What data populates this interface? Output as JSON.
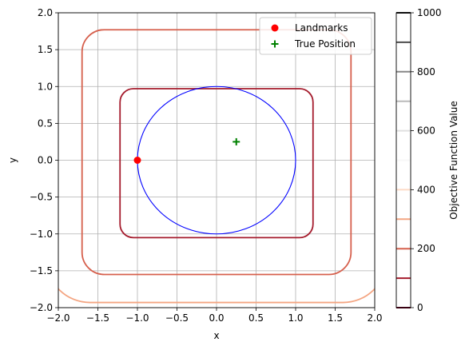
{
  "chart_data": {
    "type": "contour",
    "xlabel": "x",
    "ylabel": "y",
    "xlim": [
      -2,
      2
    ],
    "ylim": [
      -2,
      2
    ],
    "xticks": [
      "−2.0",
      "−1.5",
      "−1.0",
      "−0.5",
      "0.0",
      "0.5",
      "1.0",
      "1.5",
      "2.0"
    ],
    "yticks": [
      "−2.0",
      "−1.5",
      "−1.0",
      "−0.5",
      "0.0",
      "0.5",
      "1.0",
      "1.5",
      "2.0"
    ],
    "grid": true,
    "legend_position": "top-right",
    "contour_levels": [
      {
        "level": 100,
        "color": "#a51c2d",
        "half_width_x": 1.22,
        "y_top": 0.97,
        "y_bottom": -1.05,
        "corner_radius": 0.17
      },
      {
        "level": 200,
        "color": "#d6604d",
        "half_width_x": 1.7,
        "y_top": 1.77,
        "y_bottom": -1.55,
        "corner_radius": 0.28
      },
      {
        "level": 300,
        "color": "#f4a582",
        "half_width_x": 2.15,
        "y_top": 2.45,
        "y_bottom": -1.93,
        "corner_radius": 0.55
      }
    ],
    "series": [
      {
        "name": "Landmarks",
        "marker": "circle",
        "color": "#ff0000",
        "points": [
          [
            -1.0,
            0.0
          ]
        ]
      },
      {
        "name": "True Position",
        "marker": "plus",
        "color": "#008000",
        "points": [
          [
            0.25,
            0.25
          ]
        ]
      }
    ],
    "circle": {
      "center": [
        0,
        0
      ],
      "radius": 1.0,
      "color": "#0000ff"
    },
    "colorbar": {
      "label": "Objective Function Value",
      "range": [
        0,
        1000
      ],
      "ticks": [
        "0",
        "200",
        "400",
        "600",
        "800",
        "1000"
      ],
      "levels": [
        {
          "value": 0,
          "color": "#67001f"
        },
        {
          "value": 100,
          "color": "#a51c2d"
        },
        {
          "value": 200,
          "color": "#d6604d"
        },
        {
          "value": 300,
          "color": "#f4a582"
        },
        {
          "value": 400,
          "color": "#fddbc7"
        },
        {
          "value": 500,
          "color": "#f7f7f7"
        },
        {
          "value": 600,
          "color": "#e0e0e0"
        },
        {
          "value": 700,
          "color": "#bababa"
        },
        {
          "value": 800,
          "color": "#878787"
        },
        {
          "value": 900,
          "color": "#4d4d4d"
        },
        {
          "value": 1000,
          "color": "#1a1a1a"
        }
      ]
    }
  }
}
